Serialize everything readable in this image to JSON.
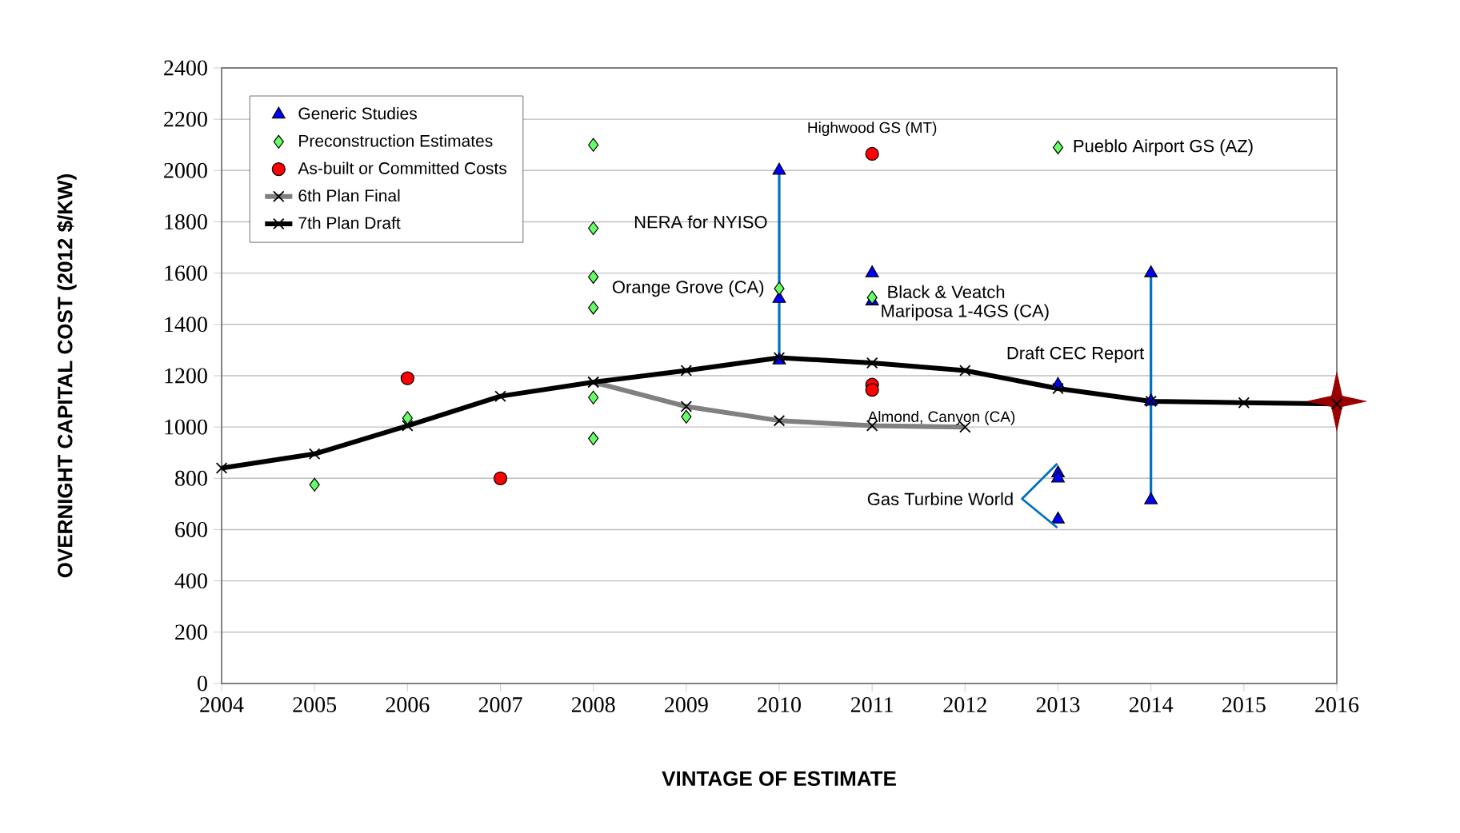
{
  "chart_data": {
    "type": "scatter",
    "xlabel": "VINTAGE OF ESTIMATE",
    "ylabel": "OVERNIGHT CAPITAL COST (2012 $/KW)",
    "xlim": [
      2004,
      2016
    ],
    "xticks": [
      2004,
      2005,
      2006,
      2007,
      2008,
      2009,
      2010,
      2011,
      2012,
      2013,
      2014,
      2015,
      2016
    ],
    "ylim": [
      0,
      2400
    ],
    "yticks": [
      0,
      200,
      400,
      600,
      800,
      1000,
      1200,
      1400,
      1600,
      1800,
      2000,
      2200,
      2400
    ],
    "grid": "y",
    "legend": "top left",
    "series": [
      {
        "name": "Generic Studies",
        "marker": "triangle",
        "color": "#0000ff",
        "x": [
          2010,
          2010,
          2010,
          2011,
          2011,
          2013,
          2013,
          2013,
          2013,
          2014,
          2014,
          2014
        ],
        "values": [
          2000,
          1500,
          1260,
          1600,
          1490,
          1165,
          820,
          800,
          640,
          1600,
          1100,
          715
        ]
      },
      {
        "name": "Preconstruction Estimates",
        "marker": "diamond",
        "color": "#66ff66",
        "x": [
          2005,
          2006,
          2008,
          2008,
          2008,
          2008,
          2008,
          2008,
          2009,
          2010,
          2011,
          2013
        ],
        "values": [
          775,
          1035,
          2100,
          1775,
          1585,
          1465,
          1115,
          955,
          1040,
          1540,
          1505,
          2090
        ]
      },
      {
        "name": "As-built or Committed Costs",
        "marker": "circle",
        "color": "#ff0000",
        "x": [
          2006,
          2007,
          2011,
          2011,
          2011
        ],
        "values": [
          1190,
          800,
          2065,
          1165,
          1145
        ]
      },
      {
        "name": "6th Plan Final",
        "type": "line",
        "marker": "cross",
        "color": "#808080",
        "x": [
          2008,
          2009,
          2010,
          2011,
          2012
        ],
        "values": [
          1175,
          1080,
          1025,
          1005,
          1000
        ]
      },
      {
        "name": "7th Plan Draft",
        "type": "line",
        "marker": "cross",
        "color": "#000000",
        "x": [
          2004,
          2005,
          2006,
          2007,
          2008,
          2009,
          2010,
          2011,
          2012,
          2013,
          2014,
          2015,
          2016
        ],
        "values": [
          840,
          895,
          1005,
          1120,
          1175,
          1220,
          1270,
          1250,
          1220,
          1150,
          1100,
          1095,
          1090
        ]
      },
      {
        "type": "line",
        "marker": "none",
        "color": "#0070c0",
        "x": [
          2010,
          2010
        ],
        "values": [
          1260,
          2000
        ]
      },
      {
        "type": "line",
        "marker": "none",
        "color": "#0070c0",
        "x": [
          2014,
          2014
        ],
        "values": [
          715,
          1600
        ]
      },
      {
        "marker": "star",
        "color": "#990000",
        "x": [
          2016
        ],
        "values": [
          1100
        ]
      }
    ],
    "annotations": [
      {
        "text": "Highwood GS (MT)",
        "x": 2011,
        "y": 2065
      },
      {
        "text": "Pueblo Airport GS (AZ)",
        "x": 2013,
        "y": 2090
      },
      {
        "text": "NERA for NYISO",
        "x": 2010,
        "y": 1800
      },
      {
        "text": "Orange Grove (CA)",
        "x": 2010,
        "y": 1540
      },
      {
        "text": "Black & Veatch",
        "x": 2011,
        "y": 1490
      },
      {
        "text": "Mariposa 1-4GS (CA)",
        "x": 2011,
        "y": 1505
      },
      {
        "text": "Draft CEC Report",
        "x": 2014,
        "y": 1270
      },
      {
        "text": "Almond, Canyon (CA)",
        "x": 2011,
        "y": 1145
      },
      "Gas Turbine World"
    ]
  }
}
